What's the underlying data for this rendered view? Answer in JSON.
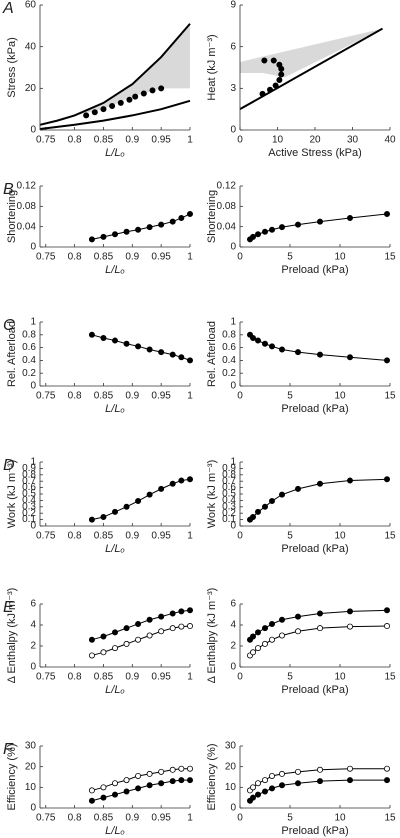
{
  "chart_data": [
    {
      "type": "line",
      "panel": "A",
      "xlabel": "L/Lₒ",
      "ylabel": "Stress (kPa)",
      "xlim": [
        0.74,
        1
      ],
      "xticks": [
        0.75,
        0.8,
        0.85,
        0.9,
        0.95,
        1
      ],
      "ylim": [
        0,
        60
      ],
      "yticks": [
        0,
        20,
        40,
        60
      ],
      "series": [
        {
          "fill": "#d9d9d9",
          "x": [
            0.8,
            0.85,
            0.9,
            0.95,
            1,
            1,
            0.95,
            0.9,
            0.85,
            0.8
          ],
          "values": [
            7,
            13,
            22,
            35,
            51,
            20,
            20,
            16,
            10,
            7
          ]
        },
        {
          "color": "#000000",
          "line_width": 2,
          "x": [
            0.74,
            0.77,
            0.8,
            0.85,
            0.9,
            0.95,
            1
          ],
          "values": [
            2.5,
            4.5,
            7,
            13,
            22,
            35,
            51
          ]
        },
        {
          "color": "#000000",
          "line_width": 2,
          "x": [
            0.74,
            0.8,
            0.85,
            0.9,
            0.95,
            1
          ],
          "values": [
            0.5,
            2.5,
            4.5,
            7,
            10,
            14
          ]
        },
        {
          "color": "#000000",
          "marker": "filled",
          "x": [
            0.82,
            0.835,
            0.85,
            0.865,
            0.88,
            0.895,
            0.905,
            0.92,
            0.935,
            0.95
          ],
          "values": [
            7,
            8.5,
            10,
            11.5,
            13,
            14.5,
            16,
            17.5,
            19,
            20
          ]
        }
      ]
    },
    {
      "type": "line",
      "xlabel": "Active Stress (kPa)",
      "ylabel": "Heat (kJ m⁻³)",
      "xlim": [
        0,
        40
      ],
      "xticks": [
        0,
        10,
        20,
        30,
        40
      ],
      "ylim": [
        0,
        9
      ],
      "yticks": [
        0,
        3,
        6,
        9
      ],
      "series": [
        {
          "fill": "#d9d9d9",
          "x": [
            0,
            38,
            12,
            6,
            0
          ],
          "values": [
            4.9,
            7.3,
            3.8,
            4.1,
            4.1
          ]
        },
        {
          "color": "#000000",
          "line_width": 2,
          "x": [
            0,
            38
          ],
          "values": [
            1.5,
            7.3
          ]
        },
        {
          "color": "#000000",
          "marker": "filled",
          "x": [
            6,
            8,
            9.5,
            10.5,
            11,
            11,
            10.5,
            9,
            6.5
          ],
          "values": [
            2.6,
            2.9,
            3.2,
            3.6,
            4.0,
            4.4,
            4.7,
            5.0,
            5.0
          ]
        }
      ]
    },
    {
      "type": "line",
      "panel": "B",
      "xlabel": "L/Lₒ",
      "ylabel": "Shortening",
      "xlim": [
        0.74,
        1
      ],
      "xticks": [
        0.75,
        0.8,
        0.85,
        0.9,
        0.95,
        1
      ],
      "ylim": [
        0,
        0.12
      ],
      "yticks": [
        0,
        0.04,
        0.08,
        0.12
      ],
      "x": [
        0.83,
        0.85,
        0.87,
        0.89,
        0.91,
        0.93,
        0.95,
        0.97,
        0.985,
        1
      ],
      "series": [
        {
          "color": "#000000",
          "marker": "filled",
          "line_width": 1,
          "values": [
            0.015,
            0.02,
            0.025,
            0.03,
            0.034,
            0.039,
            0.044,
            0.05,
            0.057,
            0.065
          ]
        }
      ]
    },
    {
      "type": "line",
      "xlabel": "Preload (kPa)",
      "ylabel": "Shortening",
      "xlim": [
        0,
        15
      ],
      "xticks": [
        0,
        5,
        10,
        15
      ],
      "ylim": [
        0,
        0.12
      ],
      "yticks": [
        0,
        0.04,
        0.08,
        0.12
      ],
      "x": [
        1,
        1.3,
        1.8,
        2.5,
        3.2,
        4.2,
        5.8,
        8,
        11,
        14.7
      ],
      "series": [
        {
          "color": "#000000",
          "marker": "filled",
          "line_width": 1,
          "values": [
            0.015,
            0.02,
            0.025,
            0.03,
            0.034,
            0.039,
            0.044,
            0.05,
            0.057,
            0.065
          ]
        }
      ]
    },
    {
      "type": "line",
      "panel": "C",
      "xlabel": "L/Lₒ",
      "ylabel": "Rel. Afterload",
      "xlim": [
        0.74,
        1
      ],
      "xticks": [
        0.75,
        0.8,
        0.85,
        0.9,
        0.95,
        1
      ],
      "ylim": [
        0,
        1
      ],
      "yticks": [
        0,
        0.2,
        0.4,
        0.6,
        0.8,
        1
      ],
      "x": [
        0.83,
        0.85,
        0.87,
        0.89,
        0.91,
        0.93,
        0.95,
        0.97,
        0.985,
        1
      ],
      "series": [
        {
          "color": "#000000",
          "marker": "filled",
          "line_width": 1,
          "values": [
            0.8,
            0.75,
            0.71,
            0.66,
            0.62,
            0.57,
            0.53,
            0.49,
            0.45,
            0.4
          ]
        }
      ]
    },
    {
      "type": "line",
      "xlabel": "Preload (kPa)",
      "ylabel": "Rel. Afterload",
      "xlim": [
        0,
        15
      ],
      "xticks": [
        0,
        5,
        10,
        15
      ],
      "ylim": [
        0,
        1
      ],
      "yticks": [
        0,
        0.2,
        0.4,
        0.6,
        0.8,
        1
      ],
      "x": [
        1,
        1.3,
        1.8,
        2.5,
        3.2,
        4.2,
        5.8,
        8,
        11,
        14.7
      ],
      "series": [
        {
          "color": "#000000",
          "marker": "filled",
          "line_width": 1,
          "values": [
            0.8,
            0.75,
            0.71,
            0.66,
            0.62,
            0.57,
            0.53,
            0.49,
            0.45,
            0.4
          ]
        }
      ]
    },
    {
      "type": "line",
      "panel": "D",
      "xlabel": "L/Lₒ",
      "ylabel": "Work (kJ m⁻³)",
      "xlim": [
        0.74,
        1
      ],
      "xticks": [
        0.75,
        0.8,
        0.85,
        0.9,
        0.95,
        1
      ],
      "ylim": [
        0,
        1
      ],
      "yticks": [
        0,
        0.1,
        0.2,
        0.3,
        0.4,
        0.5,
        0.6,
        0.7,
        0.8,
        0.9,
        1
      ],
      "x": [
        0.83,
        0.85,
        0.87,
        0.89,
        0.91,
        0.93,
        0.95,
        0.97,
        0.985,
        1
      ],
      "series": [
        {
          "color": "#000000",
          "marker": "filled",
          "line_width": 1,
          "values": [
            0.1,
            0.14,
            0.22,
            0.3,
            0.39,
            0.49,
            0.58,
            0.66,
            0.71,
            0.73
          ]
        }
      ]
    },
    {
      "type": "line",
      "xlabel": "Preload (kPa)",
      "ylabel": "Work (kJ m⁻³)",
      "xlim": [
        0,
        15
      ],
      "xticks": [
        0,
        5,
        10,
        15
      ],
      "ylim": [
        0,
        1
      ],
      "yticks": [
        0,
        0.1,
        0.2,
        0.3,
        0.4,
        0.5,
        0.6,
        0.7,
        0.8,
        0.9,
        1
      ],
      "x": [
        1,
        1.3,
        1.8,
        2.5,
        3.2,
        4.2,
        5.8,
        8,
        11,
        14.7
      ],
      "series": [
        {
          "color": "#000000",
          "marker": "filled",
          "line_width": 1,
          "values": [
            0.1,
            0.14,
            0.22,
            0.3,
            0.39,
            0.49,
            0.58,
            0.66,
            0.71,
            0.73
          ]
        }
      ]
    },
    {
      "type": "line",
      "panel": "E",
      "xlabel": "L/Lₒ",
      "ylabel": "Δ Enthalpy (kJ m⁻³)",
      "xlim": [
        0.74,
        1
      ],
      "xticks": [
        0.75,
        0.8,
        0.85,
        0.9,
        0.95,
        1
      ],
      "ylim": [
        0,
        6
      ],
      "yticks": [
        0,
        2,
        4,
        6
      ],
      "x": [
        0.83,
        0.85,
        0.87,
        0.89,
        0.91,
        0.93,
        0.95,
        0.97,
        0.985,
        1
      ],
      "series": [
        {
          "color": "#000000",
          "marker": "filled",
          "line_width": 1,
          "values": [
            2.6,
            2.9,
            3.3,
            3.7,
            4.1,
            4.5,
            4.8,
            5.1,
            5.3,
            5.4
          ]
        },
        {
          "color": "#000000",
          "marker": "open",
          "line_width": 1,
          "values": [
            1.1,
            1.4,
            1.8,
            2.2,
            2.6,
            3.0,
            3.4,
            3.7,
            3.85,
            3.9
          ]
        }
      ]
    },
    {
      "type": "line",
      "xlabel": "Preload (kPa)",
      "ylabel": "Δ Enthalpy (kJ m⁻³)",
      "xlim": [
        0,
        15
      ],
      "xticks": [
        0,
        5,
        10,
        15
      ],
      "ylim": [
        0,
        6
      ],
      "yticks": [
        0,
        2,
        4,
        6
      ],
      "x": [
        1,
        1.3,
        1.8,
        2.5,
        3.2,
        4.2,
        5.8,
        8,
        11,
        14.7
      ],
      "series": [
        {
          "color": "#000000",
          "marker": "filled",
          "line_width": 1,
          "values": [
            2.6,
            2.9,
            3.3,
            3.7,
            4.1,
            4.5,
            4.8,
            5.1,
            5.3,
            5.4
          ]
        },
        {
          "color": "#000000",
          "marker": "open",
          "line_width": 1,
          "values": [
            1.1,
            1.4,
            1.8,
            2.2,
            2.6,
            3.0,
            3.4,
            3.7,
            3.85,
            3.9
          ]
        }
      ]
    },
    {
      "type": "line",
      "panel": "F",
      "xlabel": "L/Lₒ",
      "ylabel": "Efficiency (%)",
      "xlim": [
        0.74,
        1
      ],
      "xticks": [
        0.75,
        0.8,
        0.85,
        0.9,
        0.95,
        1
      ],
      "ylim": [
        0,
        30
      ],
      "yticks": [
        0,
        10,
        20,
        30
      ],
      "x": [
        0.83,
        0.85,
        0.87,
        0.89,
        0.91,
        0.93,
        0.95,
        0.97,
        0.985,
        1
      ],
      "series": [
        {
          "color": "#000000",
          "marker": "open",
          "line_width": 1,
          "values": [
            8.5,
            10,
            12,
            13.5,
            15.5,
            16.5,
            17.5,
            18.5,
            19,
            19
          ]
        },
        {
          "color": "#000000",
          "marker": "filled",
          "line_width": 1,
          "values": [
            3.5,
            5,
            6.5,
            8,
            9.5,
            11,
            12,
            13,
            13.5,
            13.5
          ]
        }
      ]
    },
    {
      "type": "line",
      "xlabel": "Preload (kPa)",
      "ylabel": "Efficiency (%)",
      "xlim": [
        0,
        15
      ],
      "xticks": [
        0,
        5,
        10,
        15
      ],
      "ylim": [
        0,
        30
      ],
      "yticks": [
        0,
        10,
        20,
        30
      ],
      "x": [
        1,
        1.3,
        1.8,
        2.5,
        3.2,
        4.2,
        5.8,
        8,
        11,
        14.7
      ],
      "series": [
        {
          "color": "#000000",
          "marker": "open",
          "line_width": 1,
          "values": [
            8.5,
            10,
            12,
            13.5,
            15.5,
            16.5,
            17.5,
            18.5,
            19,
            19
          ]
        },
        {
          "color": "#000000",
          "marker": "filled",
          "line_width": 1,
          "values": [
            3.5,
            5,
            6.5,
            8,
            9.5,
            11,
            12,
            13,
            13.5,
            13.5
          ]
        }
      ]
    }
  ]
}
